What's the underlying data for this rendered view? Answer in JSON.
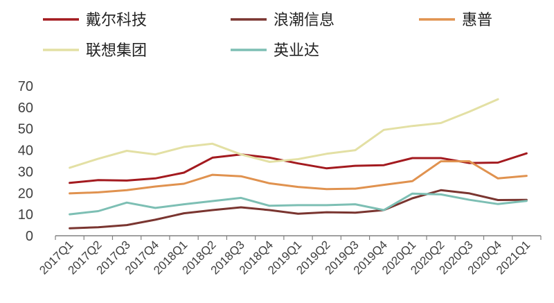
{
  "chart_data": {
    "type": "line",
    "title": "",
    "xlabel": "",
    "ylabel": "",
    "ylim": [
      0,
      70
    ],
    "yticks": [
      0,
      10,
      20,
      30,
      40,
      50,
      60,
      70
    ],
    "grid": false,
    "legend_position": "top",
    "categories": [
      "2017Q1",
      "2017Q2",
      "2017Q3",
      "2017Q4",
      "2018Q1",
      "2018Q2",
      "2018Q3",
      "2018Q4",
      "2019Q1",
      "2019Q2",
      "2019Q3",
      "2019Q4",
      "2020Q1",
      "2020Q2",
      "2020Q3",
      "2020Q4",
      "2021Q1"
    ],
    "series": [
      {
        "name": "戴尔科技",
        "color": "#a31a1f",
        "values": [
          24.7,
          26.0,
          25.8,
          26.8,
          29.5,
          36.5,
          38.0,
          36.5,
          33.8,
          31.5,
          32.7,
          33.0,
          36.3,
          36.3,
          34.0,
          34.2,
          38.5
        ]
      },
      {
        "name": "浪潮信息",
        "color": "#7a3530",
        "values": [
          3.5,
          4.0,
          5.0,
          7.5,
          10.5,
          12.0,
          13.3,
          12.0,
          10.3,
          11.0,
          10.8,
          12.0,
          17.5,
          21.3,
          19.8,
          16.7,
          16.8
        ]
      },
      {
        "name": "惠普",
        "color": "#e0924f",
        "values": [
          19.8,
          20.3,
          21.3,
          23.0,
          24.3,
          28.5,
          27.8,
          24.5,
          22.8,
          21.8,
          22.0,
          23.8,
          25.5,
          34.8,
          34.8,
          26.8,
          28.0
        ]
      },
      {
        "name": "联想集团",
        "color": "#e3e0a4",
        "values": [
          31.8,
          36.0,
          39.7,
          38.0,
          41.5,
          43.0,
          38.0,
          34.5,
          35.8,
          38.3,
          40.0,
          49.5,
          51.3,
          52.7,
          58.0,
          63.8,
          null
        ]
      },
      {
        "name": "英业达",
        "color": "#7dbfb4",
        "values": [
          10.0,
          11.5,
          15.5,
          13.0,
          14.7,
          16.2,
          17.7,
          14.0,
          14.3,
          14.3,
          14.7,
          12.0,
          19.7,
          19.3,
          16.8,
          14.8,
          16.3
        ]
      }
    ]
  }
}
